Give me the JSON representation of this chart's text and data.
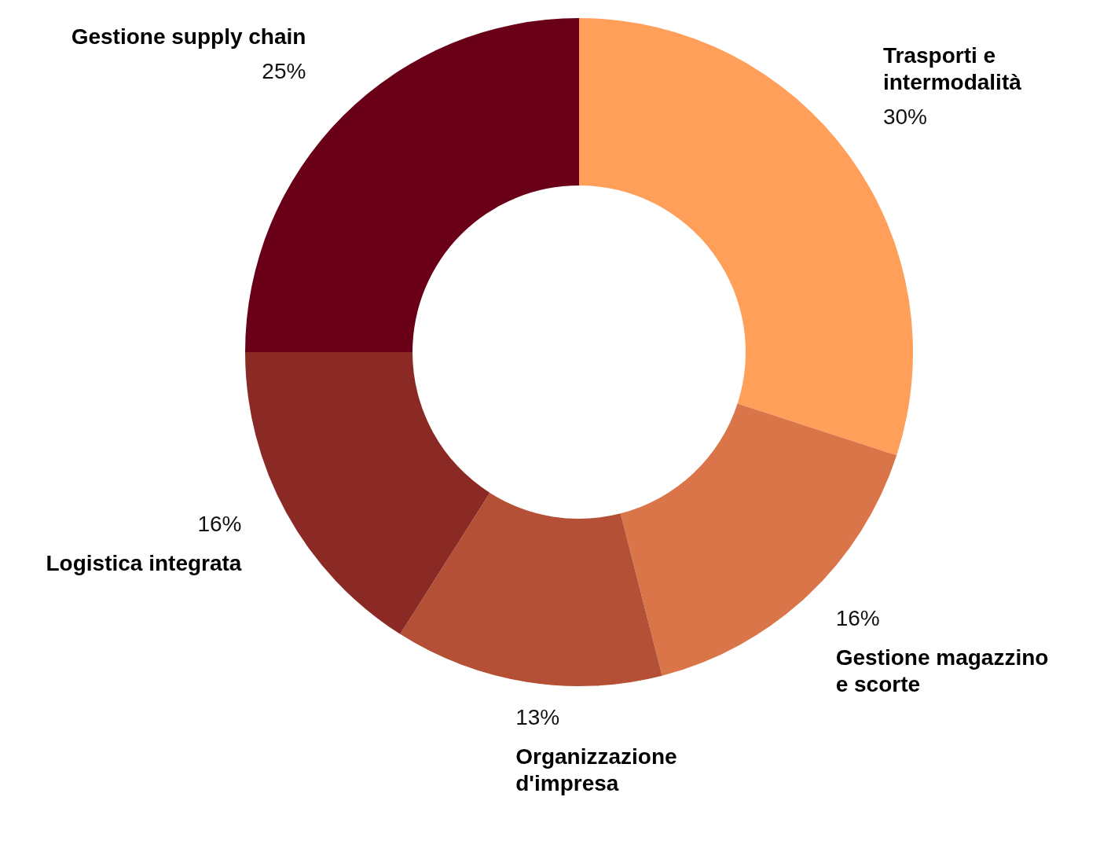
{
  "chart_data": {
    "type": "donut",
    "categories": [
      "Trasporti e intermodalità",
      "Gestione magazzino e scorte",
      "Organizzazione d'impresa",
      "Logistica integrata",
      "Gestione supply chain"
    ],
    "values": [
      30,
      16,
      13,
      16,
      25
    ],
    "colors": [
      "#ff9f5a",
      "#d97548",
      "#b35035",
      "#8b2a24",
      "#6a0018"
    ],
    "value_labels": [
      "30%",
      "16%",
      "13%",
      "16%",
      "25%"
    ],
    "legend": false
  }
}
